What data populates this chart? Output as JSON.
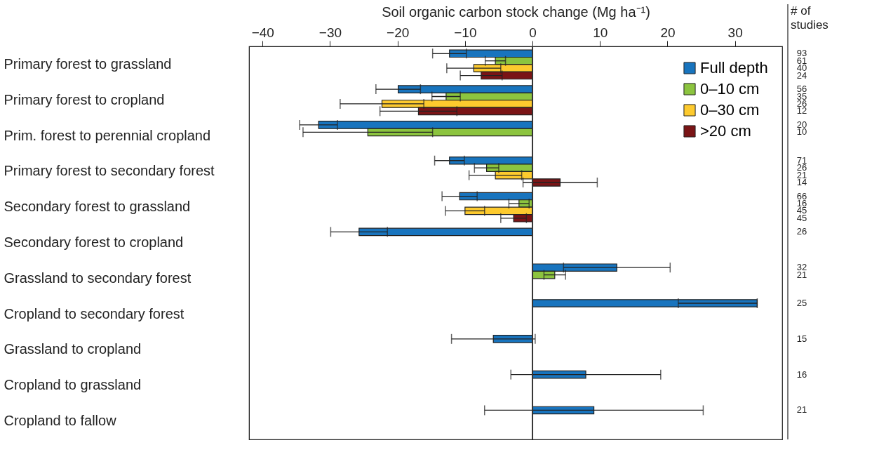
{
  "chart_data": {
    "type": "bar",
    "orientation": "horizontal",
    "xlabel": "Soil organic carbon stock change (Mg ha⁻¹)",
    "categories": [
      "Primary forest to grassland",
      "Primary forest to cropland",
      "Prim. forest to perennial cropland",
      "Primary forest to secondary forest",
      "Secondary forest to grassland",
      "Secondary forest to cropland",
      "Grassland to secondary forest",
      "Cropland to secondary forest",
      "Grassland to cropland",
      "Cropland to grassland",
      "Cropland to fallow"
    ],
    "series": [
      {
        "name": "Full depth",
        "color": "#1874be",
        "values": [
          -12.3,
          -19.9,
          -31.7,
          -12.3,
          -10.8,
          -25.7,
          12.5,
          33.3,
          -5.8,
          7.9,
          9.1
        ],
        "errors": [
          2.5,
          3.3,
          2.8,
          2.2,
          2.6,
          4.2,
          7.9,
          [
            21.6,
            33.3
          ],
          6.2,
          11.1,
          16.2
        ]
      },
      {
        "name": "0–10 cm",
        "color": "#8cc43f",
        "values": [
          -5.5,
          -12.8,
          -24.4,
          -6.8,
          -2.0,
          null,
          3.3,
          null,
          null,
          null,
          null
        ],
        "errors": [
          1.5,
          2.1,
          9.6,
          1.8,
          1.5,
          null,
          1.6,
          null,
          null,
          null,
          null
        ]
      },
      {
        "name": "0–30 cm",
        "color": "#fdca2e",
        "values": [
          -8.7,
          -22.3,
          null,
          -5.5,
          -10.0,
          null,
          null,
          null,
          null,
          null,
          null
        ],
        "errors": [
          4.0,
          6.2,
          null,
          3.9,
          2.9,
          null,
          null,
          null,
          null,
          null,
          null
        ]
      },
      {
        "name": ">20 cm",
        "color": "#7a1416",
        "values": [
          -7.6,
          -16.9,
          null,
          4.1,
          -2.8,
          null,
          null,
          null,
          null,
          null,
          null
        ],
        "errors": [
          3.1,
          5.7,
          null,
          5.5,
          1.9,
          null,
          null,
          null,
          null,
          null,
          null
        ]
      }
    ],
    "xlim": [
      -42,
      37
    ],
    "xticks": [
      -40,
      -30,
      -20,
      -10,
      0,
      10,
      20,
      30
    ],
    "ref_lines": [
      {
        "axis": "x",
        "value": 0
      }
    ],
    "legend": "top right",
    "grid": false,
    "annotations": [
      "# of studies",
      "93",
      "61",
      "40",
      "24",
      "56",
      "35",
      "26",
      "12",
      "20",
      "10",
      "71",
      "26",
      "21",
      "14",
      "66",
      "16",
      "45",
      "45",
      "26",
      "32",
      "21",
      "25",
      "15",
      "16",
      "21"
    ]
  }
}
